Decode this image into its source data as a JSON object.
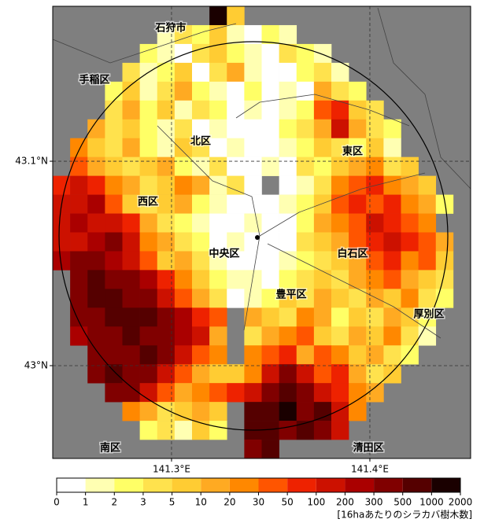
{
  "map": {
    "type": "heatmap",
    "xlim": [
      141.2401,
      141.4508
    ],
    "ylim": [
      42.9546,
      43.1758
    ],
    "xticks": [
      {
        "value": 141.3,
        "label": "141.3°E"
      },
      {
        "value": 141.4,
        "label": "141.4°E"
      }
    ],
    "yticks": [
      {
        "value": 43.1,
        "label": "43.1°N"
      },
      {
        "value": 43.0,
        "label": "43°N"
      }
    ],
    "labels": [
      "石狩市",
      "手稲区",
      "北区",
      "東区",
      "西区",
      "中央区",
      "白石区",
      "豊平区",
      "厚別区",
      "南区",
      "清田区"
    ],
    "cells": [
      [
        null,
        null,
        null,
        null,
        null,
        null,
        null,
        null,
        null,
        1000,
        5,
        null,
        null,
        null,
        null,
        null,
        null,
        null,
        null,
        null,
        null,
        null,
        null,
        null
      ],
      [
        null,
        null,
        null,
        null,
        null,
        null,
        1,
        3,
        2,
        5,
        1,
        0,
        2,
        1,
        null,
        null,
        null,
        null,
        null,
        null,
        null,
        null,
        null,
        null
      ],
      [
        null,
        null,
        null,
        null,
        null,
        2,
        1,
        0,
        3,
        5,
        2,
        1,
        0,
        3,
        2,
        1,
        null,
        null,
        null,
        null,
        null,
        null,
        null,
        null
      ],
      [
        null,
        null,
        null,
        null,
        3,
        1,
        2,
        5,
        0,
        3,
        10,
        1,
        0,
        0,
        2,
        3,
        1,
        null,
        null,
        null,
        null,
        null,
        null,
        null
      ],
      [
        null,
        null,
        null,
        2,
        5,
        1,
        3,
        10,
        2,
        1,
        0,
        2,
        0,
        1,
        0,
        10,
        3,
        2,
        null,
        null,
        null,
        null,
        null,
        null
      ],
      [
        null,
        null,
        null,
        3,
        10,
        2,
        5,
        1,
        3,
        2,
        0,
        1,
        0,
        1,
        2,
        30,
        50,
        5,
        3,
        null,
        null,
        null,
        null,
        null
      ],
      [
        null,
        null,
        10,
        3,
        5,
        2,
        1,
        3,
        0,
        1,
        0,
        0,
        0,
        2,
        3,
        10,
        100,
        10,
        3,
        2,
        null,
        null,
        null,
        null
      ],
      [
        null,
        20,
        5,
        3,
        10,
        2,
        1,
        5,
        3,
        0,
        1,
        0,
        0,
        1,
        2,
        5,
        3,
        2,
        5,
        1,
        null,
        null,
        null,
        null
      ],
      [
        null,
        30,
        10,
        5,
        3,
        5,
        10,
        2,
        1,
        3,
        0,
        0,
        1,
        0,
        3,
        2,
        5,
        10,
        20,
        3,
        5,
        null,
        null,
        null
      ],
      [
        50,
        100,
        50,
        20,
        10,
        3,
        5,
        20,
        10,
        1,
        3,
        0,
        null,
        0,
        1,
        3,
        20,
        30,
        50,
        20,
        10,
        5,
        null,
        null
      ],
      [
        100,
        100,
        200,
        30,
        5,
        3,
        5,
        10,
        2,
        1,
        0,
        0,
        0,
        1,
        2,
        5,
        30,
        50,
        30,
        50,
        20,
        10,
        2,
        null
      ],
      [
        100,
        200,
        100,
        100,
        50,
        10,
        3,
        2,
        1,
        0,
        0,
        1,
        0,
        0,
        2,
        10,
        20,
        30,
        100,
        50,
        30,
        20,
        null,
        null
      ],
      [
        100,
        100,
        200,
        300,
        100,
        20,
        10,
        3,
        2,
        0,
        1,
        0,
        0,
        0,
        3,
        5,
        10,
        30,
        50,
        100,
        50,
        30,
        10,
        null
      ],
      [
        200,
        300,
        300,
        200,
        100,
        30,
        5,
        10,
        3,
        1,
        0,
        0,
        0,
        1,
        2,
        3,
        5,
        10,
        30,
        50,
        20,
        30,
        5,
        null
      ],
      [
        null,
        300,
        500,
        300,
        300,
        200,
        50,
        20,
        5,
        2,
        1,
        1,
        0,
        2,
        3,
        5,
        3,
        10,
        20,
        30,
        10,
        5,
        3,
        null
      ],
      [
        null,
        300,
        500,
        500,
        300,
        300,
        100,
        30,
        10,
        3,
        0,
        1,
        2,
        5,
        3,
        10,
        5,
        3,
        10,
        5,
        20,
        3,
        2,
        null
      ],
      [
        null,
        300,
        300,
        500,
        500,
        500,
        300,
        200,
        50,
        30,
        null,
        10,
        5,
        3,
        20,
        10,
        2,
        5,
        3,
        10,
        5,
        2,
        null,
        null
      ],
      [
        null,
        200,
        300,
        300,
        500,
        300,
        300,
        200,
        100,
        10,
        null,
        3,
        10,
        20,
        30,
        5,
        3,
        10,
        5,
        20,
        3,
        1,
        null,
        null
      ],
      [
        null,
        null,
        300,
        300,
        300,
        500,
        300,
        100,
        30,
        20,
        null,
        20,
        30,
        50,
        10,
        30,
        20,
        5,
        10,
        3,
        2,
        null,
        null,
        null
      ],
      [
        null,
        null,
        300,
        500,
        300,
        300,
        100,
        30,
        10,
        5,
        5,
        20,
        100,
        300,
        100,
        30,
        50,
        10,
        3,
        5,
        null,
        null,
        null,
        null
      ],
      [
        null,
        null,
        null,
        300,
        300,
        100,
        30,
        10,
        20,
        30,
        50,
        100,
        300,
        500,
        300,
        100,
        50,
        20,
        10,
        null,
        null,
        null,
        null,
        null
      ],
      [
        null,
        null,
        null,
        null,
        20,
        10,
        3,
        5,
        10,
        5,
        null,
        500,
        500,
        1000,
        300,
        500,
        100,
        20,
        null,
        null,
        null,
        null,
        null,
        null
      ],
      [
        null,
        null,
        null,
        null,
        null,
        2,
        3,
        1,
        5,
        2,
        null,
        500,
        500,
        300,
        500,
        300,
        100,
        null,
        null,
        null,
        null,
        null,
        null,
        null
      ],
      [
        null,
        null,
        null,
        null,
        null,
        null,
        null,
        null,
        null,
        null,
        null,
        300,
        500,
        null,
        null,
        null,
        null,
        null,
        null,
        null,
        null,
        null,
        null,
        null
      ]
    ]
  },
  "colorbar": {
    "ticks": [
      0,
      1,
      2,
      3,
      5,
      10,
      20,
      30,
      50,
      100,
      200,
      300,
      500,
      1000,
      2000
    ],
    "colors": [
      "#ffffff",
      "#ffffb2",
      "#ffff66",
      "#ffe24d",
      "#ffcc33",
      "#ffaa22",
      "#ff8800",
      "#ff5500",
      "#ee2200",
      "#cc1100",
      "#aa0000",
      "#800000",
      "#550000",
      "#1a0000"
    ],
    "unit": "[16haあたりのシラカバ樹木数]"
  }
}
